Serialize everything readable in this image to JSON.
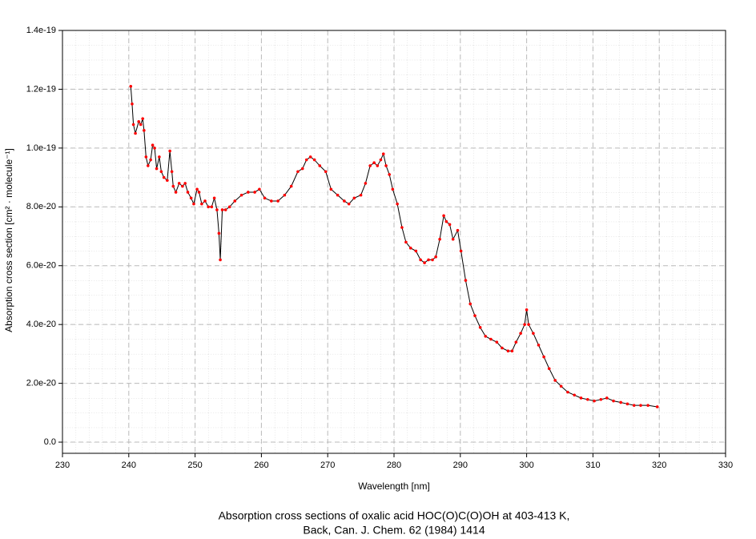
{
  "chart_data": {
    "type": "line",
    "title": "Absorption cross sections of oxalic acid HOC(O)C(O)OH at 403-413 K,",
    "subtitle": "Back, Can. J. Chem. 62 (1984) 1414",
    "x_label": "Wavelength [nm]",
    "y_label": "Absorption cross section [cm² · molecule⁻¹]",
    "color": "#000000",
    "marker_color": "#ff0000",
    "grid": true,
    "xlim": [
      230,
      330
    ],
    "xticks": [
      230,
      240,
      250,
      260,
      270,
      280,
      290,
      300,
      310,
      320,
      330
    ],
    "ylim": [
      -3.8e-21,
      1.4e-19
    ],
    "yticks": [
      {
        "value": 0,
        "label": "0.0"
      },
      {
        "value": 2e-20,
        "label": "2.0e-20"
      },
      {
        "value": 4e-20,
        "label": "4.0e-20"
      },
      {
        "value": 6e-20,
        "label": "6.0e-20"
      },
      {
        "value": 8e-20,
        "label": "8.0e-20"
      },
      {
        "value": 1e-19,
        "label": "1.0e-19"
      },
      {
        "value": 1.2e-19,
        "label": "1.2e-19"
      },
      {
        "value": 1.4e-19,
        "label": "1.4e-19"
      }
    ],
    "x": [
      240.3,
      240.5,
      240.7,
      241.0,
      241.5,
      241.8,
      242.1,
      242.3,
      242.6,
      242.9,
      243.3,
      243.6,
      243.9,
      244.2,
      244.6,
      244.9,
      245.3,
      245.8,
      246.2,
      246.5,
      246.7,
      247.1,
      247.6,
      248.1,
      248.5,
      248.9,
      249.4,
      249.8,
      250.3,
      250.6,
      251.0,
      251.5,
      252.0,
      252.5,
      252.9,
      253.3,
      253.6,
      253.8,
      254.1,
      254.6,
      255.2,
      256.0,
      257.0,
      258.0,
      259.0,
      259.7,
      260.5,
      261.5,
      262.5,
      263.5,
      264.5,
      265.5,
      266.2,
      266.8,
      267.4,
      268.0,
      268.8,
      269.7,
      270.5,
      271.5,
      272.5,
      273.2,
      274.0,
      275.0,
      275.7,
      276.4,
      277.0,
      277.5,
      278.0,
      278.4,
      278.8,
      279.3,
      279.8,
      280.5,
      281.2,
      281.8,
      282.5,
      283.3,
      284.0,
      284.6,
      285.2,
      285.8,
      286.3,
      286.9,
      287.5,
      287.9,
      288.4,
      288.9,
      289.6,
      290.1,
      290.8,
      291.5,
      292.2,
      293.0,
      293.8,
      294.6,
      295.5,
      296.3,
      297.2,
      297.8,
      298.4,
      299.1,
      299.7,
      300.0,
      300.3,
      301.0,
      301.8,
      302.6,
      303.4,
      304.3,
      305.2,
      306.2,
      307.2,
      308.2,
      309.2,
      310.2,
      311.2,
      312.1,
      313.1,
      314.2,
      315.2,
      316.2,
      317.2,
      318.3,
      319.7
    ],
    "values": [
      1.21e-19,
      1.15e-19,
      1.08e-19,
      1.05e-19,
      1.09e-19,
      1.08e-19,
      1.1e-19,
      1.06e-19,
      9.7e-20,
      9.4e-20,
      9.6e-20,
      1.01e-19,
      1e-19,
      9.3e-20,
      9.7e-20,
      9.2e-20,
      9e-20,
      8.9e-20,
      9.9e-20,
      9.2e-20,
      8.7e-20,
      8.5e-20,
      8.8e-20,
      8.7e-20,
      8.8e-20,
      8.5e-20,
      8.3e-20,
      8.1e-20,
      8.6e-20,
      8.5e-20,
      8.1e-20,
      8.2e-20,
      8e-20,
      8e-20,
      8.3e-20,
      7.9e-20,
      7.1e-20,
      6.2e-20,
      7.9e-20,
      7.9e-20,
      8e-20,
      8.2e-20,
      8.4e-20,
      8.5e-20,
      8.5e-20,
      8.6e-20,
      8.3e-20,
      8.2e-20,
      8.2e-20,
      8.4e-20,
      8.7e-20,
      9.2e-20,
      9.3e-20,
      9.6e-20,
      9.7e-20,
      9.6e-20,
      9.4e-20,
      9.2e-20,
      8.6e-20,
      8.4e-20,
      8.2e-20,
      8.1e-20,
      8.3e-20,
      8.4e-20,
      8.8e-20,
      9.4e-20,
      9.5e-20,
      9.4e-20,
      9.6e-20,
      9.8e-20,
      9.4e-20,
      9.1e-20,
      8.6e-20,
      8.1e-20,
      7.3e-20,
      6.8e-20,
      6.6e-20,
      6.5e-20,
      6.2e-20,
      6.1e-20,
      6.2e-20,
      6.2e-20,
      6.3e-20,
      6.9e-20,
      7.7e-20,
      7.5e-20,
      7.4e-20,
      6.9e-20,
      7.2e-20,
      6.5e-20,
      5.5e-20,
      4.7e-20,
      4.3e-20,
      3.9e-20,
      3.6e-20,
      3.5e-20,
      3.4e-20,
      3.2e-20,
      3.1e-20,
      3.1e-20,
      3.4e-20,
      3.7e-20,
      4e-20,
      4.5e-20,
      4e-20,
      3.7e-20,
      3.3e-20,
      2.9e-20,
      2.5e-20,
      2.1e-20,
      1.9e-20,
      1.7e-20,
      1.6e-20,
      1.5e-20,
      1.45e-20,
      1.4e-20,
      1.45e-20,
      1.5e-20,
      1.4e-20,
      1.35e-20,
      1.3e-20,
      1.25e-20,
      1.25e-20,
      1.25e-20,
      1.2e-20
    ]
  }
}
